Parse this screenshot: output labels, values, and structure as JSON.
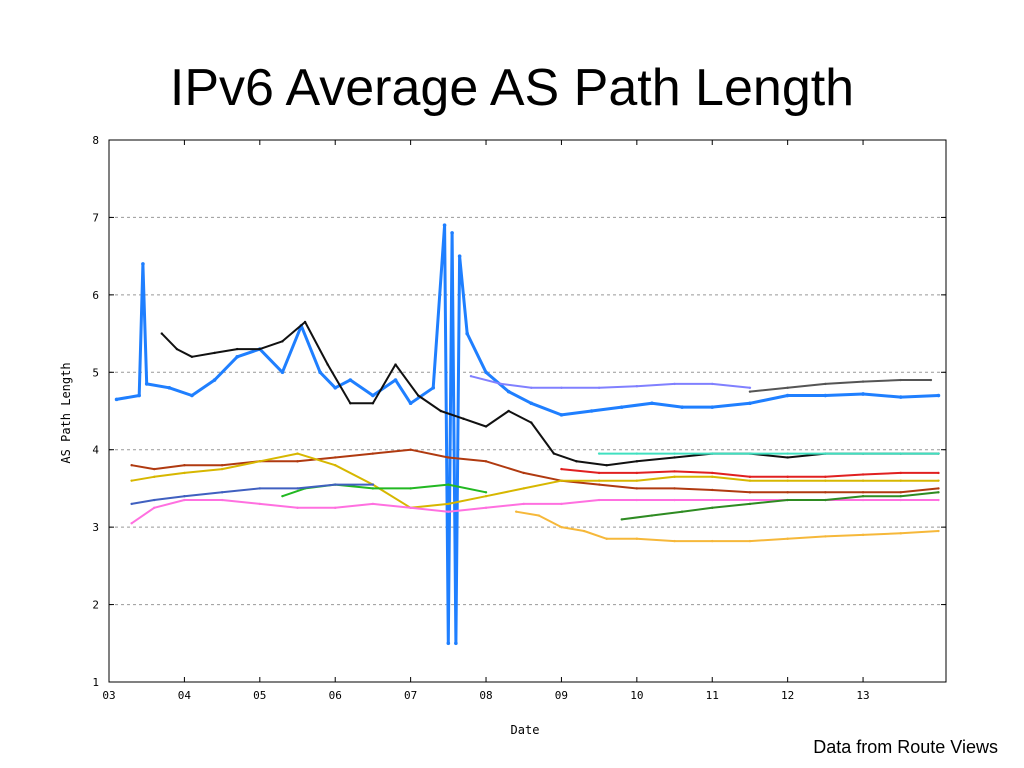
{
  "slide": {
    "title": "IPv6 Average AS Path Length",
    "credit": "Data from Route Views"
  },
  "chart_data": {
    "type": "line",
    "title": "",
    "xlabel": "Date",
    "ylabel": "AS Path Length",
    "xlim": [
      2003.0,
      2014.1
    ],
    "ylim": [
      1,
      8
    ],
    "x_ticks": [
      {
        "value": 2003.0,
        "label": "03"
      },
      {
        "value": 2004.0,
        "label": "04"
      },
      {
        "value": 2005.0,
        "label": "05"
      },
      {
        "value": 2006.0,
        "label": "06"
      },
      {
        "value": 2007.0,
        "label": "07"
      },
      {
        "value": 2008.0,
        "label": "08"
      },
      {
        "value": 2009.0,
        "label": "09"
      },
      {
        "value": 2010.0,
        "label": "10"
      },
      {
        "value": 2011.0,
        "label": "11"
      },
      {
        "value": 2012.0,
        "label": "12"
      },
      {
        "value": 2013.0,
        "label": "13"
      }
    ],
    "y_ticks": [
      1,
      2,
      3,
      4,
      5,
      6,
      7,
      8
    ],
    "grid": "horizontal dashed",
    "legend": "none",
    "series": [
      {
        "color": "#1f7fff",
        "x": [
          2003.1,
          2003.4,
          2003.45,
          2003.5,
          2003.8,
          2004.1,
          2004.4,
          2004.7,
          2005.0,
          2005.3,
          2005.55,
          2005.8,
          2006.0,
          2006.2,
          2006.5,
          2006.8,
          2007.0,
          2007.3,
          2007.45,
          2007.5,
          2007.55,
          2007.6,
          2007.65,
          2007.75,
          2008.0,
          2008.3,
          2008.6,
          2009.0,
          2009.4,
          2009.8,
          2010.2,
          2010.6,
          2011.0,
          2011.5,
          2012.0,
          2012.5,
          2013.0,
          2013.5,
          2014.0
        ],
        "y": [
          4.65,
          4.7,
          6.4,
          4.85,
          4.8,
          4.7,
          4.9,
          5.2,
          5.3,
          5.0,
          5.6,
          5.0,
          4.8,
          4.9,
          4.7,
          4.9,
          4.6,
          4.8,
          6.9,
          1.5,
          6.8,
          1.5,
          6.5,
          5.5,
          5.0,
          4.75,
          4.6,
          4.45,
          4.5,
          4.55,
          4.6,
          4.55,
          4.55,
          4.6,
          4.7,
          4.7,
          4.72,
          4.68,
          4.7
        ]
      },
      {
        "color": "#111111",
        "x": [
          2003.7,
          2003.9,
          2004.1,
          2004.4,
          2004.7,
          2005.0,
          2005.3,
          2005.6,
          2005.9,
          2006.2,
          2006.5,
          2006.8,
          2007.1,
          2007.4,
          2007.7,
          2008.0,
          2008.3,
          2008.6,
          2008.9,
          2009.2,
          2009.6,
          2010.0,
          2010.5,
          2011.0,
          2011.5,
          2012.0,
          2012.5,
          2013.0,
          2013.5,
          2014.0
        ],
        "y": [
          5.5,
          5.3,
          5.2,
          5.25,
          5.3,
          5.3,
          5.4,
          5.65,
          5.1,
          4.6,
          4.6,
          5.1,
          4.7,
          4.5,
          4.4,
          4.3,
          4.5,
          4.35,
          3.95,
          3.85,
          3.8,
          3.85,
          3.9,
          3.95,
          3.95,
          3.9,
          3.95,
          3.95,
          3.95,
          3.95
        ]
      },
      {
        "color": "#555555",
        "x": [
          2011.5,
          2012.0,
          2012.5,
          2013.0,
          2013.5,
          2013.9
        ],
        "y": [
          4.75,
          4.8,
          4.85,
          4.88,
          4.9,
          4.9
        ]
      },
      {
        "color": "#b03a10",
        "x": [
          2003.3,
          2003.6,
          2004.0,
          2004.5,
          2005.0,
          2005.5,
          2006.0,
          2006.5,
          2007.0,
          2007.5,
          2008.0,
          2008.5,
          2009.0,
          2009.5,
          2010.0,
          2010.5,
          2011.0,
          2011.5,
          2012.0,
          2012.5,
          2013.0,
          2013.5,
          2014.0
        ],
        "y": [
          3.8,
          3.75,
          3.8,
          3.8,
          3.85,
          3.85,
          3.9,
          3.95,
          4.0,
          3.9,
          3.85,
          3.7,
          3.6,
          3.55,
          3.5,
          3.5,
          3.48,
          3.45,
          3.45,
          3.45,
          3.45,
          3.45,
          3.5
        ]
      },
      {
        "color": "#d7b700",
        "x": [
          2003.3,
          2003.6,
          2004.0,
          2004.5,
          2005.0,
          2005.5,
          2006.0,
          2006.5,
          2007.0,
          2007.5,
          2008.0,
          2008.5,
          2009.0,
          2009.5,
          2010.0,
          2010.5,
          2011.0,
          2011.5,
          2012.0,
          2012.5,
          2013.0,
          2013.5,
          2014.0
        ],
        "y": [
          3.6,
          3.65,
          3.7,
          3.75,
          3.85,
          3.95,
          3.8,
          3.55,
          3.25,
          3.3,
          3.4,
          3.5,
          3.6,
          3.6,
          3.6,
          3.65,
          3.65,
          3.6,
          3.6,
          3.6,
          3.6,
          3.6,
          3.6
        ]
      },
      {
        "color": "#f6b83a",
        "x": [
          2008.4,
          2008.7,
          2009.0,
          2009.3,
          2009.6,
          2010.0,
          2010.5,
          2011.0,
          2011.5,
          2012.0,
          2012.5,
          2013.0,
          2013.5,
          2014.0
        ],
        "y": [
          3.2,
          3.15,
          3.0,
          2.95,
          2.85,
          2.85,
          2.82,
          2.82,
          2.82,
          2.85,
          2.88,
          2.9,
          2.92,
          2.95
        ]
      },
      {
        "color": "#ff70e0",
        "x": [
          2003.3,
          2003.6,
          2004.0,
          2004.5,
          2005.0,
          2005.5,
          2006.0,
          2006.5,
          2007.0,
          2007.5,
          2008.0,
          2008.5,
          2009.0,
          2009.5,
          2010.0,
          2010.5,
          2011.0,
          2011.5,
          2012.0,
          2012.5,
          2013.0,
          2013.5,
          2014.0
        ],
        "y": [
          3.05,
          3.25,
          3.35,
          3.35,
          3.3,
          3.25,
          3.25,
          3.3,
          3.25,
          3.2,
          3.25,
          3.3,
          3.3,
          3.35,
          3.35,
          3.35,
          3.35,
          3.35,
          3.35,
          3.35,
          3.35,
          3.35,
          3.35
        ]
      },
      {
        "color": "#22b822",
        "x": [
          2005.3,
          2005.6,
          2006.0,
          2006.5,
          2007.0,
          2007.5,
          2008.0
        ],
        "y": [
          3.4,
          3.5,
          3.55,
          3.5,
          3.5,
          3.55,
          3.45
        ]
      },
      {
        "color": "#2e8b22",
        "x": [
          2009.8,
          2010.2,
          2010.6,
          2011.0,
          2011.5,
          2012.0,
          2012.5,
          2013.0,
          2013.5,
          2014.0
        ],
        "y": [
          3.1,
          3.15,
          3.2,
          3.25,
          3.3,
          3.35,
          3.35,
          3.4,
          3.4,
          3.45
        ]
      },
      {
        "color": "#4060c0",
        "x": [
          2003.3,
          2003.6,
          2004.0,
          2004.5,
          2005.0,
          2005.5,
          2006.0,
          2006.5
        ],
        "y": [
          3.3,
          3.35,
          3.4,
          3.45,
          3.5,
          3.5,
          3.55,
          3.55
        ]
      },
      {
        "color": "#8080ff",
        "x": [
          2007.8,
          2008.2,
          2008.6,
          2009.0,
          2009.5,
          2010.0,
          2010.5,
          2011.0,
          2011.5
        ],
        "y": [
          4.95,
          4.85,
          4.8,
          4.8,
          4.8,
          4.82,
          4.85,
          4.85,
          4.8
        ]
      },
      {
        "color": "#e02020",
        "x": [
          2009.0,
          2009.5,
          2010.0,
          2010.5,
          2011.0,
          2011.5,
          2012.0,
          2012.5,
          2013.0,
          2013.5,
          2014.0
        ],
        "y": [
          3.75,
          3.7,
          3.7,
          3.72,
          3.7,
          3.65,
          3.65,
          3.65,
          3.68,
          3.7,
          3.7
        ]
      },
      {
        "color": "#40e0c0",
        "x": [
          2009.5,
          2010.0,
          2010.5,
          2011.0,
          2011.5,
          2012.0,
          2012.5,
          2013.0,
          2013.5,
          2014.0
        ],
        "y": [
          3.95,
          3.95,
          3.95,
          3.95,
          3.95,
          3.95,
          3.95,
          3.95,
          3.95,
          3.95
        ]
      }
    ]
  }
}
